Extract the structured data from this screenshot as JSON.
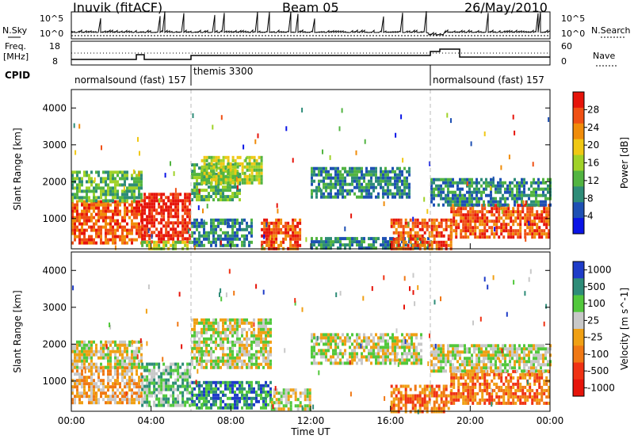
{
  "header": {
    "station": "Inuvik (fitACF)",
    "beam": "Beam 05",
    "date": "26/May/2010"
  },
  "noise_panel": {
    "left_label": "N.Sky",
    "right_label": "N.Search",
    "left_ticks": [
      "10^5",
      "10^0"
    ],
    "right_ticks": [
      "10^5",
      "10^0"
    ]
  },
  "freq_panel": {
    "left_label_1": "Freq.",
    "left_label_2": "[MHz]",
    "left_ticks": [
      "18",
      "8"
    ],
    "right_label": "Nave",
    "right_ticks": [
      "60",
      "0"
    ]
  },
  "cpid_panel": {
    "label": "CPID",
    "segments": [
      "normalsound (fast) 157",
      "themis 3300",
      "normalsound (fast) 157"
    ]
  },
  "colors": {
    "power": [
      "#0a14e6",
      "#1e50b4",
      "#2e8c78",
      "#52b441",
      "#a0d228",
      "#f0c814",
      "#f08c0a",
      "#f05014",
      "#e6140a"
    ],
    "velocity": [
      "#1e3cc8",
      "#2e8c78",
      "#52c83c",
      "#c8c8c8",
      "#f0a014",
      "#f07814",
      "#f03214",
      "#e6140a"
    ]
  },
  "chart_data": [
    {
      "type": "heatmap",
      "name": "power",
      "ylabel": "Slant Range [km]",
      "xlabel": "Time UT",
      "x_ticks": [
        "00:00",
        "04:00",
        "08:00",
        "12:00",
        "16:00",
        "20:00",
        "00:00"
      ],
      "y_ticks": [
        "1000",
        "2000",
        "3000",
        "4000"
      ],
      "xlim_hours": [
        0,
        24
      ],
      "ylim_km": [
        180,
        4500
      ],
      "colorbar_label": "Power [dB]",
      "colorbar_ticks": [
        "4",
        "8",
        "12",
        "16",
        "20",
        "24",
        "28"
      ],
      "regions": [
        {
          "t0": 0.0,
          "t1": 3.5,
          "r0": 300,
          "r1": 1500,
          "level": 7
        },
        {
          "t0": 0.0,
          "t1": 3.5,
          "r0": 1500,
          "r1": 2300,
          "level": 3
        },
        {
          "t0": 3.5,
          "t1": 6.0,
          "r0": 400,
          "r1": 1700,
          "level": 8
        },
        {
          "t0": 3.5,
          "t1": 6.0,
          "r0": 200,
          "r1": 400,
          "level": 4
        },
        {
          "t0": 6.0,
          "t1": 8.5,
          "r0": 1500,
          "r1": 2500,
          "level": 3
        },
        {
          "t0": 6.5,
          "t1": 9.5,
          "r0": 2000,
          "r1": 2700,
          "level": 4
        },
        {
          "t0": 6.0,
          "t1": 9.0,
          "r0": 300,
          "r1": 1000,
          "level": 2
        },
        {
          "t0": 9.5,
          "t1": 11.5,
          "r0": 200,
          "r1": 1000,
          "level": 7
        },
        {
          "t0": 12.0,
          "t1": 17.0,
          "r0": 1600,
          "r1": 2400,
          "level": 2
        },
        {
          "t0": 12.0,
          "t1": 18.0,
          "r0": 200,
          "r1": 500,
          "level": 2
        },
        {
          "t0": 16.0,
          "t1": 19.0,
          "r0": 200,
          "r1": 1000,
          "level": 7
        },
        {
          "t0": 19.0,
          "t1": 24.0,
          "r0": 500,
          "r1": 1400,
          "level": 7
        },
        {
          "t0": 18.0,
          "t1": 24.0,
          "r0": 1400,
          "r1": 2100,
          "level": 2
        }
      ]
    },
    {
      "type": "heatmap",
      "name": "velocity",
      "ylabel": "Slant Range [km]",
      "xlabel": "Time UT",
      "x_ticks": [
        "00:00",
        "04:00",
        "08:00",
        "12:00",
        "16:00",
        "20:00",
        "00:00"
      ],
      "y_ticks": [
        "1000",
        "2000",
        "3000",
        "4000"
      ],
      "xlim_hours": [
        0,
        24
      ],
      "ylim_km": [
        180,
        4500
      ],
      "colorbar_label": "Velocity [m s^-1]",
      "colorbar_ticks": [
        "1000",
        "500",
        "100",
        "25",
        "-25",
        "-100",
        "-500",
        "-1000"
      ],
      "regions": [
        {
          "t0": 0.0,
          "t1": 3.5,
          "r0": 400,
          "r1": 1400,
          "level": 4
        },
        {
          "t0": 0.0,
          "t1": 3.5,
          "r0": 1400,
          "r1": 2100,
          "level": 3
        },
        {
          "t0": 3.5,
          "t1": 6.0,
          "r0": 300,
          "r1": 1500,
          "level": 2
        },
        {
          "t0": 6.0,
          "t1": 10.0,
          "r0": 1400,
          "r1": 2700,
          "level": 3
        },
        {
          "t0": 6.0,
          "t1": 10.0,
          "r0": 300,
          "r1": 1000,
          "level": 1
        },
        {
          "t0": 10.0,
          "t1": 12.0,
          "r0": 200,
          "r1": 800,
          "level": 3
        },
        {
          "t0": 12.0,
          "t1": 17.5,
          "r0": 1500,
          "r1": 2300,
          "level": 3
        },
        {
          "t0": 16.0,
          "t1": 19.0,
          "r0": 200,
          "r1": 900,
          "level": 5
        },
        {
          "t0": 19.0,
          "t1": 24.0,
          "r0": 400,
          "r1": 1300,
          "level": 5
        },
        {
          "t0": 18.0,
          "t1": 24.0,
          "r0": 1300,
          "r1": 2000,
          "level": 3
        }
      ]
    }
  ]
}
